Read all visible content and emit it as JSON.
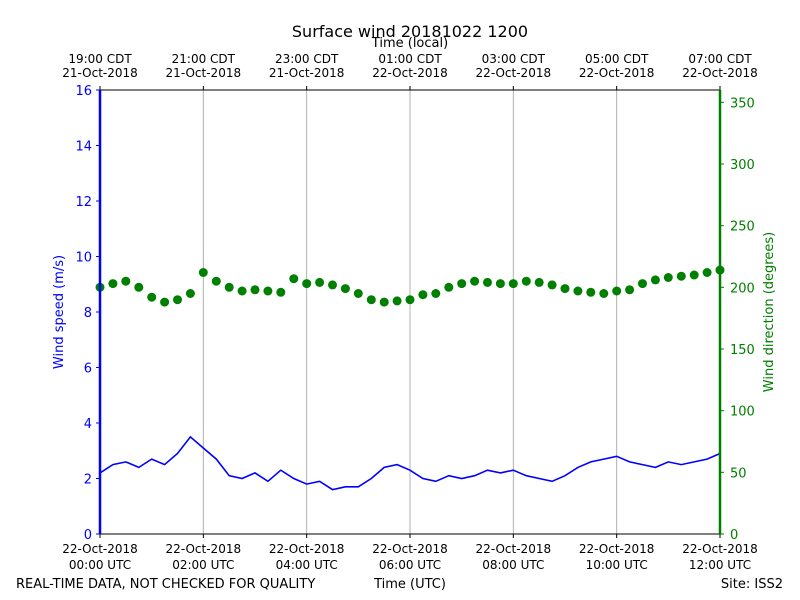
{
  "chart_data": {
    "type": "line",
    "title": "Surface wind 20181022 1200",
    "top_xlabel": "Time (local)",
    "xlabel": "Time (UTC)",
    "footer_left": "REAL-TIME DATA, NOT CHECKED FOR QUALITY",
    "footer_right": "Site: ISS2",
    "xlim_utc_hours": [
      0,
      12
    ],
    "grid": "vertical",
    "x_ticks_bottom": [
      {
        "date": "22-Oct-2018",
        "time": "00:00 UTC"
      },
      {
        "date": "22-Oct-2018",
        "time": "02:00 UTC"
      },
      {
        "date": "22-Oct-2018",
        "time": "04:00 UTC"
      },
      {
        "date": "22-Oct-2018",
        "time": "06:00 UTC"
      },
      {
        "date": "22-Oct-2018",
        "time": "08:00 UTC"
      },
      {
        "date": "22-Oct-2018",
        "time": "10:00 UTC"
      },
      {
        "date": "22-Oct-2018",
        "time": "12:00 UTC"
      }
    ],
    "x_ticks_top": [
      {
        "time": "19:00 CDT",
        "date": "21-Oct-2018"
      },
      {
        "time": "21:00 CDT",
        "date": "21-Oct-2018"
      },
      {
        "time": "23:00 CDT",
        "date": "21-Oct-2018"
      },
      {
        "time": "01:00 CDT",
        "date": "22-Oct-2018"
      },
      {
        "time": "03:00 CDT",
        "date": "22-Oct-2018"
      },
      {
        "time": "05:00 CDT",
        "date": "22-Oct-2018"
      },
      {
        "time": "07:00 CDT",
        "date": "22-Oct-2018"
      }
    ],
    "y_left": {
      "label": "Wind speed (m/s)",
      "lim": [
        0,
        16
      ],
      "ticks": [
        0,
        2,
        4,
        6,
        8,
        10,
        12,
        14,
        16
      ],
      "color": "#0000ff"
    },
    "y_right": {
      "label": "Wind direction (degrees)",
      "lim": [
        0,
        360
      ],
      "ticks": [
        0,
        50,
        100,
        150,
        200,
        250,
        300,
        350
      ],
      "color": "#008000"
    },
    "series": [
      {
        "name": "Wind speed (m/s)",
        "axis": "left",
        "style": "line",
        "color": "#0000ff",
        "x_utc_hours": [
          0,
          0.25,
          0.5,
          0.75,
          1,
          1.25,
          1.5,
          1.75,
          2,
          2.25,
          2.5,
          2.75,
          3,
          3.25,
          3.5,
          3.75,
          4,
          4.25,
          4.5,
          4.75,
          5,
          5.25,
          5.5,
          5.75,
          6,
          6.25,
          6.5,
          6.75,
          7,
          7.25,
          7.5,
          7.75,
          8,
          8.25,
          8.5,
          8.75,
          9,
          9.25,
          9.5,
          9.75,
          10,
          10.25,
          10.5,
          10.75,
          11,
          11.25,
          11.5,
          11.75,
          12
        ],
        "values": [
          2.2,
          2.5,
          2.6,
          2.4,
          2.7,
          2.5,
          2.9,
          3.5,
          3.1,
          2.7,
          2.1,
          2.0,
          2.2,
          1.9,
          2.3,
          2.0,
          1.8,
          1.9,
          1.6,
          1.7,
          1.7,
          2.0,
          2.4,
          2.5,
          2.3,
          2.0,
          1.9,
          2.1,
          2.0,
          2.1,
          2.3,
          2.2,
          2.3,
          2.1,
          2.0,
          1.9,
          2.1,
          2.4,
          2.6,
          2.7,
          2.8,
          2.6,
          2.5,
          2.4,
          2.6,
          2.5,
          2.6,
          2.7,
          2.9
        ]
      },
      {
        "name": "Wind direction (degrees)",
        "axis": "right",
        "style": "markers",
        "color": "#008000",
        "x_utc_hours": [
          0,
          0.25,
          0.5,
          0.75,
          1,
          1.25,
          1.5,
          1.75,
          2,
          2.25,
          2.5,
          2.75,
          3,
          3.25,
          3.5,
          3.75,
          4,
          4.25,
          4.5,
          4.75,
          5,
          5.25,
          5.5,
          5.75,
          6,
          6.25,
          6.5,
          6.75,
          7,
          7.25,
          7.5,
          7.75,
          8,
          8.25,
          8.5,
          8.75,
          9,
          9.25,
          9.5,
          9.75,
          10,
          10.25,
          10.5,
          10.75,
          11,
          11.25,
          11.5,
          11.75,
          12
        ],
        "values": [
          200,
          203,
          205,
          200,
          192,
          188,
          190,
          195,
          212,
          205,
          200,
          197,
          198,
          197,
          196,
          207,
          203,
          204,
          202,
          199,
          195,
          190,
          188,
          189,
          190,
          194,
          195,
          200,
          203,
          205,
          204,
          203,
          203,
          205,
          204,
          202,
          199,
          197,
          196,
          195,
          197,
          198,
          203,
          206,
          208,
          209,
          210,
          212,
          214
        ]
      }
    ]
  }
}
